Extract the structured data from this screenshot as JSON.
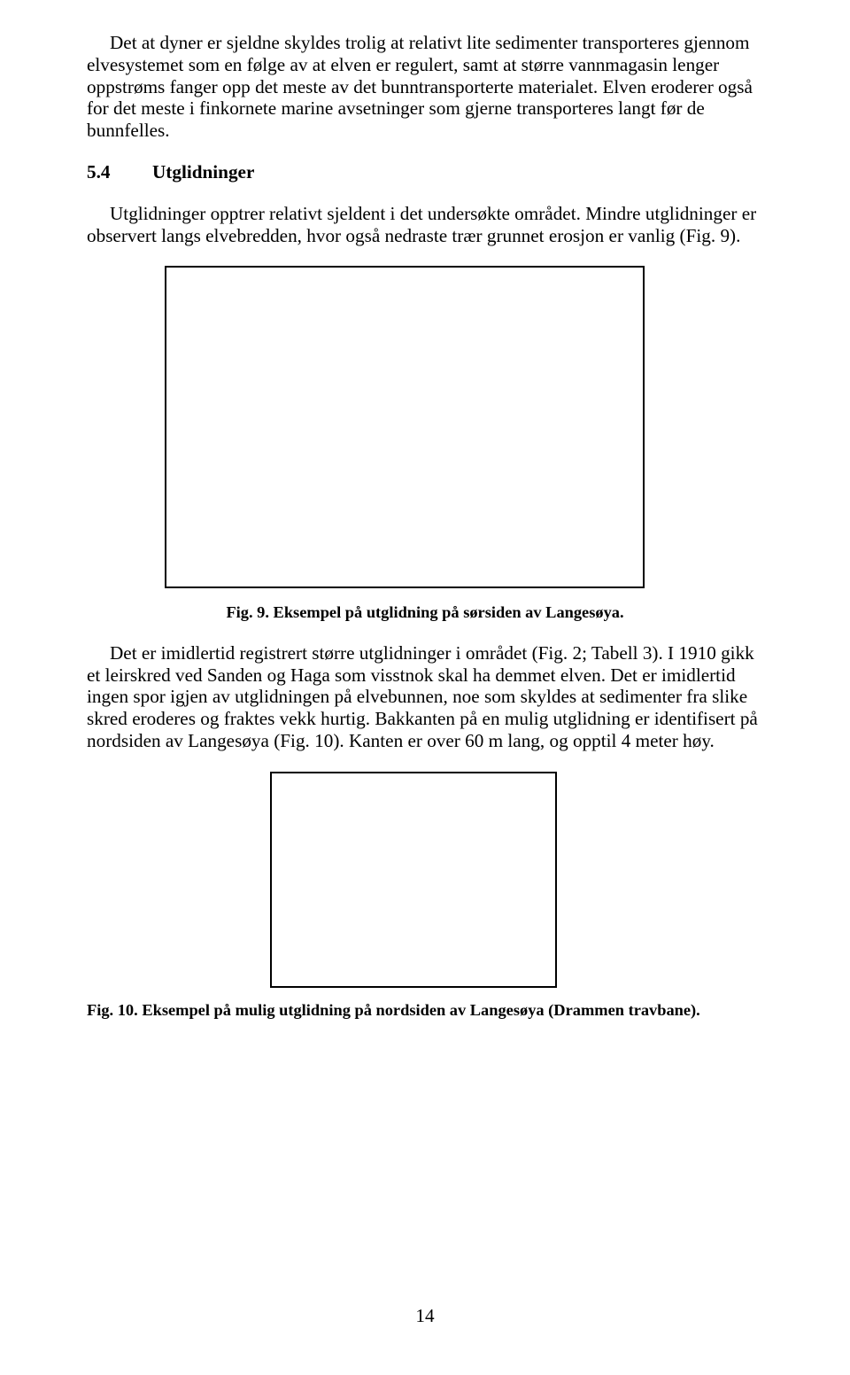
{
  "para1": "Det at dyner er sjeldne skyldes trolig at relativt lite sedimenter transporteres gjennom elvesystemet som en følge av at elven er regulert, samt at større vannmagasin lenger oppstrøms fanger opp det meste av det bunntransporterte materialet. Elven eroderer også for det meste i finkornete marine avsetninger som gjerne transporteres langt før de bunnfelles.",
  "section": {
    "num": "5.4",
    "title": "Utglidninger"
  },
  "para2": "Utglidninger opptrer relativt sjeldent i det undersøkte området. Mindre utglidninger er observert langs elvebredden, hvor også nedraste trær grunnet erosjon er vanlig (Fig. 9).",
  "caption1": "Fig. 9.  Eksempel på utglidning på sørsiden av Langesøya.",
  "para3": "Det er imidlertid registrert større utglidninger i området (Fig. 2; Tabell 3). I 1910 gikk et leirskred ved Sanden og Haga som visstnok skal ha demmet elven. Det er imidlertid ingen spor igjen av utglidningen på elvebunnen, noe som skyldes at sedimenter fra slike skred eroderes og fraktes vekk hurtig. Bakkanten på en mulig utglidning er identifisert på nordsiden av Langesøya (Fig. 10). Kanten er over 60 m lang, og opptil 4 meter høy.",
  "caption2": "Fig. 10.  Eksempel på mulig utglidning på nordsiden av Langesøya (Drammen travbane).",
  "pageNumber": "14"
}
